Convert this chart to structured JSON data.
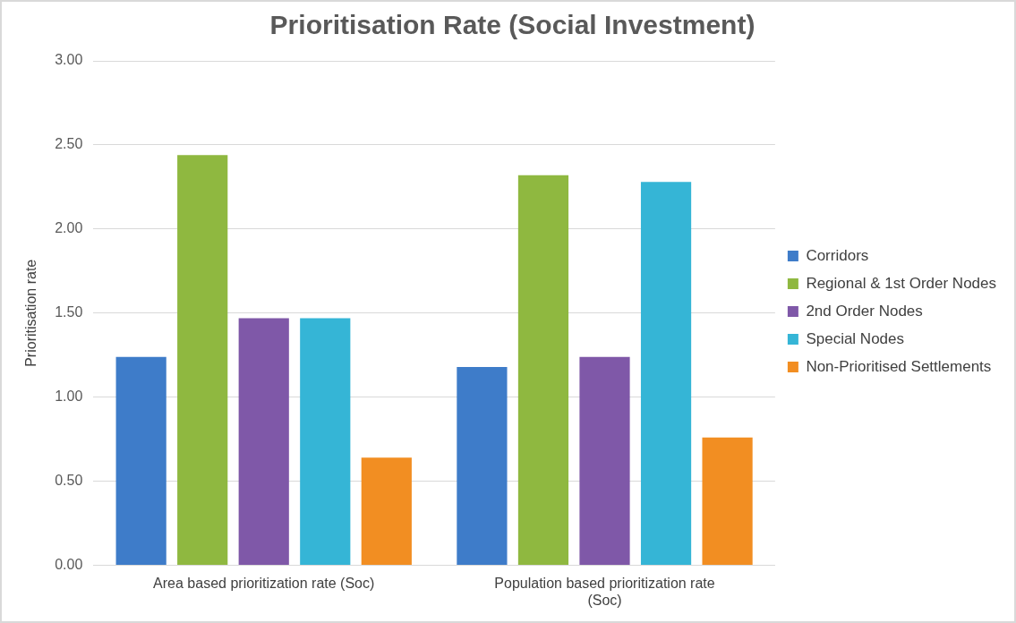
{
  "chart_data": {
    "type": "bar",
    "title": "Prioritisation Rate (Social Investment)",
    "ylabel": "Prioritisation rate",
    "categories": [
      "Area based prioritization rate (Soc)",
      "Population based prioritization rate (Soc)"
    ],
    "series": [
      {
        "name": "Corridors",
        "color": "#3e7cc9",
        "values": [
          1.24,
          1.18
        ]
      },
      {
        "name": "Regional & 1st Order Nodes",
        "color": "#8fb840",
        "values": [
          2.44,
          2.32
        ]
      },
      {
        "name": "2nd Order Nodes",
        "color": "#7f58a8",
        "values": [
          1.47,
          1.24
        ]
      },
      {
        "name": "Special Nodes",
        "color": "#35b5d6",
        "values": [
          1.47,
          2.28
        ]
      },
      {
        "name": "Non-Prioritised Settlements",
        "color": "#f28e22",
        "values": [
          0.64,
          0.76
        ]
      }
    ],
    "ylim": [
      0,
      3
    ],
    "yticks": [
      {
        "value": 0,
        "label": "0.00"
      },
      {
        "value": 0.5,
        "label": "0.50"
      },
      {
        "value": 1,
        "label": "1.00"
      },
      {
        "value": 1.5,
        "label": "1.50"
      },
      {
        "value": 2,
        "label": "2.00"
      },
      {
        "value": 2.5,
        "label": "2.50"
      },
      {
        "value": 3,
        "label": "3.00"
      }
    ],
    "grid": "y",
    "legend": "right"
  }
}
